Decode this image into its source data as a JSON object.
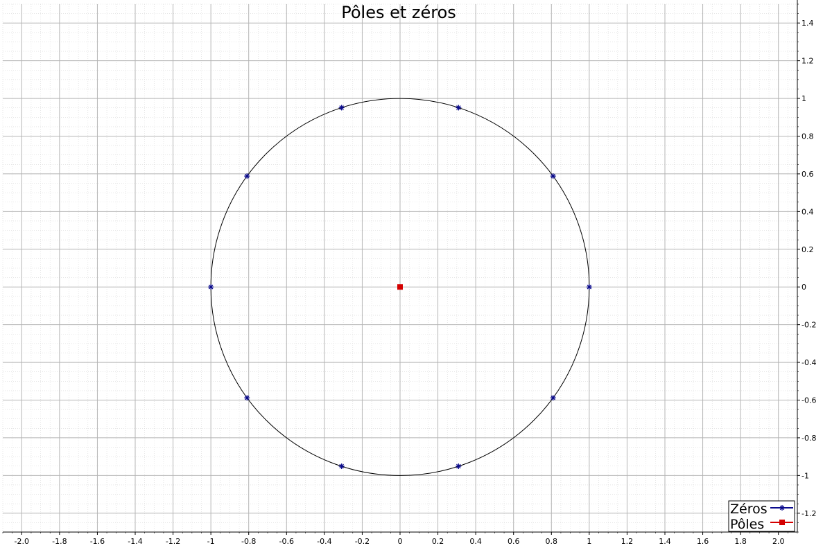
{
  "chart_data": {
    "type": "scatter",
    "title": "Pôles et zéros",
    "xlabel": "",
    "ylabel": "",
    "xlim": [
      -2.1,
      2.1
    ],
    "ylim": [
      -1.3,
      1.5
    ],
    "x_ticks": [
      "-2.0",
      "-1.8",
      "-1.6",
      "-1.4",
      "-1.2",
      "-1",
      "-0.8",
      "-0.6",
      "-0.4",
      "-0.2",
      "0",
      "0.2",
      "0.4",
      "0.6",
      "0.8",
      "1",
      "1.2",
      "1.4",
      "1.6",
      "1.8",
      "2.0"
    ],
    "x_tick_values": [
      -2.0,
      -1.8,
      -1.6,
      -1.4,
      -1.2,
      -1.0,
      -0.8,
      -0.6,
      -0.4,
      -0.2,
      0.0,
      0.2,
      0.4,
      0.6,
      0.8,
      1.0,
      1.2,
      1.4,
      1.6,
      1.8,
      2.0
    ],
    "y_ticks": [
      "1.4",
      "1.2",
      "1",
      "0.8",
      "0.6",
      "0.4",
      "0.2",
      "0",
      "-0.2",
      "-0.4",
      "-0.6",
      "-0.8",
      "-1",
      "-1.2"
    ],
    "y_tick_values": [
      1.4,
      1.2,
      1.0,
      0.8,
      0.6,
      0.4,
      0.2,
      0.0,
      -0.2,
      -0.4,
      -0.6,
      -0.8,
      -1.0,
      -1.2
    ],
    "grid": true,
    "minor_grid": true,
    "y_axis_side": "right",
    "unit_circle": {
      "center": [
        0,
        0
      ],
      "radius": 1,
      "color": "#000000"
    },
    "legend_position": "bottom-right",
    "series": [
      {
        "name": "Zéros",
        "marker": "asterisk",
        "color": "#0a0a8c",
        "points": [
          [
            1.0,
            0.0
          ],
          [
            0.809,
            0.588
          ],
          [
            0.309,
            0.951
          ],
          [
            -0.309,
            0.951
          ],
          [
            -0.809,
            0.588
          ],
          [
            -1.0,
            0.0
          ],
          [
            -0.809,
            -0.588
          ],
          [
            -0.309,
            -0.951
          ],
          [
            0.309,
            -0.951
          ],
          [
            0.809,
            -0.588
          ]
        ]
      },
      {
        "name": "Pôles",
        "marker": "square",
        "color": "#d40000",
        "points": [
          [
            0.0,
            0.0
          ]
        ]
      }
    ]
  }
}
